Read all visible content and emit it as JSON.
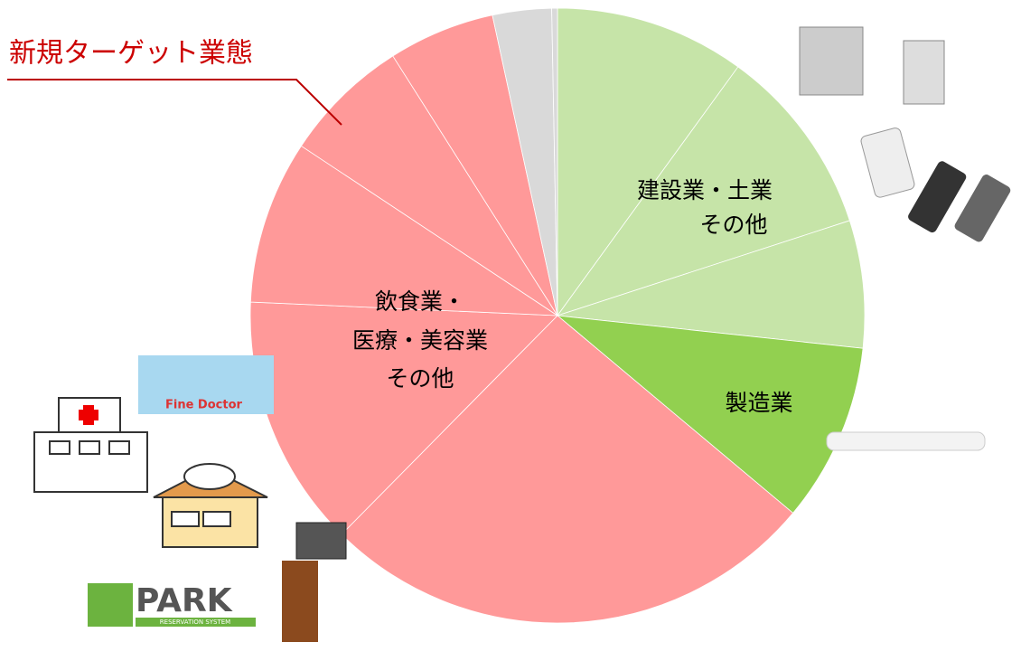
{
  "chart_data": {
    "type": "pie",
    "categories": [
      null,
      null,
      null,
      null,
      null,
      null,
      null,
      null,
      null,
      null,
      null
    ],
    "values": [
      10,
      10,
      6.7,
      9.4,
      26.3,
      13.3,
      8.6,
      6.7,
      5.6,
      3.1,
      0.3
    ],
    "colors": [
      "#c6e4a8",
      "#c6e4a8",
      "#c6e4a8",
      "#92d050",
      "#ff9999",
      "#ff9999",
      "#ff9999",
      "#ff9999",
      "#ff9999",
      "#d9d9d9",
      "#d9d9d9"
    ],
    "annotations": [
      {
        "lines": [
          "建設業・土業",
          "その他"
        ]
      },
      {
        "lines": [
          "製造業"
        ]
      },
      {
        "lines": [
          "飲食業・",
          "医療・美容業",
          "その他"
        ]
      },
      {
        "lines": [
          "新規ターゲット業態"
        ]
      }
    ]
  },
  "logos": {
    "epark": "PARK",
    "epark_sub": "RESERVATION SYSTEM",
    "fine_doctor": "Fine Doctor"
  }
}
